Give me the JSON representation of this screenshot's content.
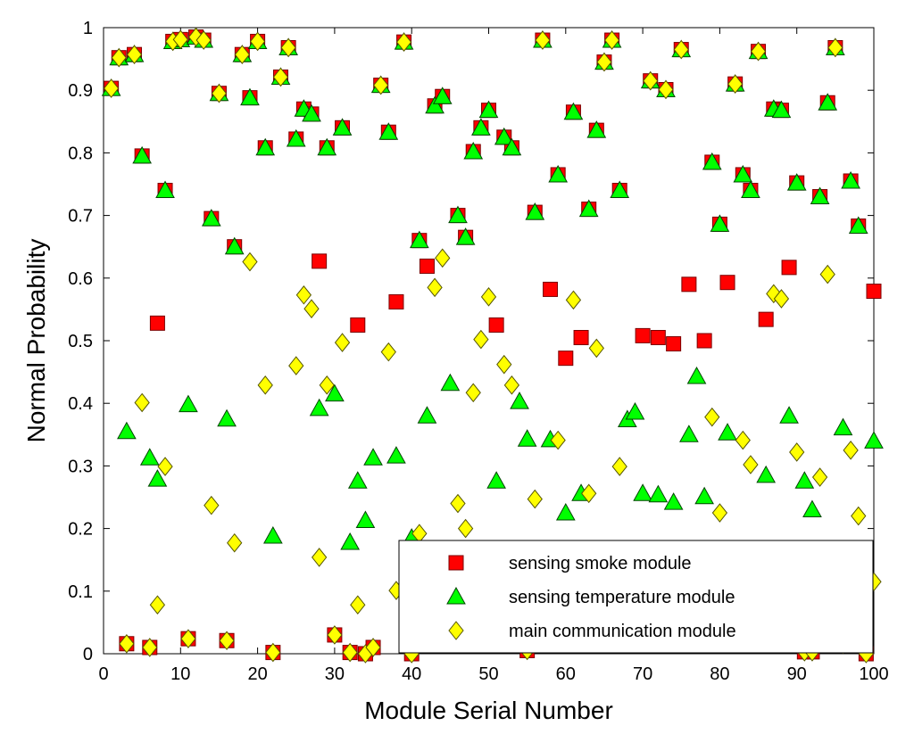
{
  "chart_data": {
    "type": "scatter",
    "title": "",
    "xlabel": "Module Serial Number",
    "ylabel": "Normal Probability",
    "xlim": [
      0,
      100
    ],
    "ylim": [
      0,
      1
    ],
    "xticks": [
      0,
      10,
      20,
      30,
      40,
      50,
      60,
      70,
      80,
      90,
      100
    ],
    "yticks": [
      0,
      0.1,
      0.2,
      0.3,
      0.4,
      0.5,
      0.6,
      0.7,
      0.8,
      0.9,
      1
    ],
    "xtick_labels": [
      "0",
      "10",
      "20",
      "30",
      "40",
      "50",
      "60",
      "70",
      "80",
      "90",
      "100"
    ],
    "ytick_labels": [
      "0",
      "0.1",
      "0.2",
      "0.3",
      "0.4",
      "0.5",
      "0.6",
      "0.7",
      "0.8",
      "0.9",
      "1"
    ],
    "grid": false,
    "legend_position": "bottom-right",
    "series": [
      {
        "name": "sensing smoke module",
        "marker": "square",
        "color": "#ff0000",
        "points": [
          [
            1,
            0.903
          ],
          [
            2,
            0.952
          ],
          [
            3,
            0.016
          ],
          [
            4,
            0.957
          ],
          [
            5,
            0.795
          ],
          [
            6,
            0.01
          ],
          [
            7,
            0.528
          ],
          [
            8,
            0.74
          ],
          [
            9,
            0.978
          ],
          [
            10,
            0.981
          ],
          [
            11,
            0.024
          ],
          [
            12,
            0.985
          ],
          [
            13,
            0.98
          ],
          [
            14,
            0.695
          ],
          [
            15,
            0.895
          ],
          [
            16,
            0.021
          ],
          [
            17,
            0.65
          ],
          [
            18,
            0.957
          ],
          [
            19,
            0.888
          ],
          [
            20,
            0.978
          ],
          [
            21,
            0.808
          ],
          [
            22,
            0.002
          ],
          [
            23,
            0.921
          ],
          [
            24,
            0.968
          ],
          [
            25,
            0.822
          ],
          [
            26,
            0.87
          ],
          [
            27,
            0.862
          ],
          [
            28,
            0.627
          ],
          [
            29,
            0.808
          ],
          [
            30,
            0.03
          ],
          [
            31,
            0.84
          ],
          [
            32,
            0.002
          ],
          [
            33,
            0.525
          ],
          [
            34,
            0.0
          ],
          [
            35,
            0.01
          ],
          [
            36,
            0.908
          ],
          [
            37,
            0.833
          ],
          [
            38,
            0.562
          ],
          [
            39,
            0.977
          ],
          [
            40,
            0.0
          ],
          [
            41,
            0.66
          ],
          [
            42,
            0.619
          ],
          [
            43,
            0.875
          ],
          [
            44,
            0.89
          ],
          [
            46,
            0.7
          ],
          [
            47,
            0.665
          ],
          [
            48,
            0.802
          ],
          [
            49,
            0.84
          ],
          [
            50,
            0.868
          ],
          [
            51,
            0.525
          ],
          [
            52,
            0.825
          ],
          [
            53,
            0.808
          ],
          [
            55,
            0.005
          ],
          [
            56,
            0.705
          ],
          [
            57,
            0.98
          ],
          [
            58,
            0.582
          ],
          [
            59,
            0.765
          ],
          [
            60,
            0.472
          ],
          [
            61,
            0.865
          ],
          [
            62,
            0.505
          ],
          [
            63,
            0.71
          ],
          [
            64,
            0.836
          ],
          [
            65,
            0.945
          ],
          [
            66,
            0.98
          ],
          [
            67,
            0.74
          ],
          [
            70,
            0.508
          ],
          [
            71,
            0.915
          ],
          [
            72,
            0.505
          ],
          [
            73,
            0.901
          ],
          [
            74,
            0.495
          ],
          [
            75,
            0.965
          ],
          [
            76,
            0.59
          ],
          [
            78,
            0.5
          ],
          [
            79,
            0.785
          ],
          [
            80,
            0.686
          ],
          [
            81,
            0.593
          ],
          [
            82,
            0.91
          ],
          [
            83,
            0.765
          ],
          [
            84,
            0.74
          ],
          [
            85,
            0.962
          ],
          [
            86,
            0.534
          ],
          [
            87,
            0.87
          ],
          [
            88,
            0.868
          ],
          [
            89,
            0.617
          ],
          [
            90,
            0.752
          ],
          [
            91,
            0.003
          ],
          [
            92,
            0.003
          ],
          [
            93,
            0.73
          ],
          [
            94,
            0.88
          ],
          [
            95,
            0.968
          ],
          [
            96,
            0.015
          ],
          [
            97,
            0.755
          ],
          [
            98,
            0.683
          ],
          [
            99,
            0.0
          ],
          [
            100,
            0.579
          ]
        ]
      },
      {
        "name": "sensing temperature module",
        "marker": "triangle",
        "color": "#00ff00",
        "points": [
          [
            1,
            0.903
          ],
          [
            2,
            0.952
          ],
          [
            3,
            0.355
          ],
          [
            4,
            0.957
          ],
          [
            5,
            0.795
          ],
          [
            6,
            0.313
          ],
          [
            7,
            0.279
          ],
          [
            8,
            0.74
          ],
          [
            9,
            0.978
          ],
          [
            10,
            0.981
          ],
          [
            11,
            0.398
          ],
          [
            12,
            0.985
          ],
          [
            13,
            0.98
          ],
          [
            14,
            0.695
          ],
          [
            15,
            0.895
          ],
          [
            16,
            0.375
          ],
          [
            17,
            0.65
          ],
          [
            18,
            0.957
          ],
          [
            19,
            0.888
          ],
          [
            20,
            0.978
          ],
          [
            21,
            0.808
          ],
          [
            22,
            0.188
          ],
          [
            23,
            0.921
          ],
          [
            24,
            0.968
          ],
          [
            25,
            0.822
          ],
          [
            26,
            0.87
          ],
          [
            27,
            0.862
          ],
          [
            28,
            0.392
          ],
          [
            29,
            0.808
          ],
          [
            30,
            0.415
          ],
          [
            31,
            0.84
          ],
          [
            32,
            0.178
          ],
          [
            33,
            0.276
          ],
          [
            34,
            0.213
          ],
          [
            35,
            0.313
          ],
          [
            36,
            0.908
          ],
          [
            37,
            0.833
          ],
          [
            38,
            0.316
          ],
          [
            39,
            0.977
          ],
          [
            40,
            0.185
          ],
          [
            41,
            0.66
          ],
          [
            42,
            0.38
          ],
          [
            43,
            0.875
          ],
          [
            44,
            0.89
          ],
          [
            45,
            0.432
          ],
          [
            46,
            0.7
          ],
          [
            47,
            0.665
          ],
          [
            48,
            0.802
          ],
          [
            49,
            0.84
          ],
          [
            50,
            0.868
          ],
          [
            51,
            0.276
          ],
          [
            52,
            0.825
          ],
          [
            53,
            0.808
          ],
          [
            54,
            0.403
          ],
          [
            55,
            0.343
          ],
          [
            56,
            0.705
          ],
          [
            57,
            0.98
          ],
          [
            58,
            0.342
          ],
          [
            59,
            0.765
          ],
          [
            60,
            0.225
          ],
          [
            61,
            0.865
          ],
          [
            62,
            0.256
          ],
          [
            63,
            0.71
          ],
          [
            64,
            0.836
          ],
          [
            65,
            0.945
          ],
          [
            66,
            0.98
          ],
          [
            67,
            0.74
          ],
          [
            68,
            0.374
          ],
          [
            69,
            0.386
          ],
          [
            70,
            0.256
          ],
          [
            71,
            0.915
          ],
          [
            72,
            0.254
          ],
          [
            73,
            0.901
          ],
          [
            74,
            0.242
          ],
          [
            75,
            0.965
          ],
          [
            76,
            0.35
          ],
          [
            77,
            0.443
          ],
          [
            78,
            0.251
          ],
          [
            79,
            0.785
          ],
          [
            80,
            0.686
          ],
          [
            81,
            0.353
          ],
          [
            82,
            0.91
          ],
          [
            83,
            0.765
          ],
          [
            84,
            0.74
          ],
          [
            85,
            0.962
          ],
          [
            86,
            0.285
          ],
          [
            87,
            0.87
          ],
          [
            88,
            0.868
          ],
          [
            89,
            0.38
          ],
          [
            90,
            0.752
          ],
          [
            91,
            0.276
          ],
          [
            92,
            0.23
          ],
          [
            93,
            0.73
          ],
          [
            94,
            0.88
          ],
          [
            95,
            0.968
          ],
          [
            96,
            0.361
          ],
          [
            97,
            0.755
          ],
          [
            98,
            0.683
          ],
          [
            100,
            0.34
          ]
        ]
      },
      {
        "name": "main communication module",
        "marker": "diamond",
        "color": "#ffff00",
        "points": [
          [
            1,
            0.903
          ],
          [
            2,
            0.952
          ],
          [
            3,
            0.016
          ],
          [
            4,
            0.957
          ],
          [
            5,
            0.401
          ],
          [
            6,
            0.01
          ],
          [
            7,
            0.078
          ],
          [
            8,
            0.299
          ],
          [
            9,
            0.978
          ],
          [
            10,
            0.981
          ],
          [
            11,
            0.024
          ],
          [
            12,
            0.985
          ],
          [
            13,
            0.98
          ],
          [
            14,
            0.237
          ],
          [
            15,
            0.895
          ],
          [
            16,
            0.021
          ],
          [
            17,
            0.177
          ],
          [
            18,
            0.957
          ],
          [
            19,
            0.626
          ],
          [
            20,
            0.978
          ],
          [
            21,
            0.429
          ],
          [
            22,
            0.002
          ],
          [
            23,
            0.921
          ],
          [
            24,
            0.968
          ],
          [
            25,
            0.46
          ],
          [
            26,
            0.573
          ],
          [
            27,
            0.551
          ],
          [
            28,
            0.154
          ],
          [
            29,
            0.429
          ],
          [
            30,
            0.03
          ],
          [
            31,
            0.497
          ],
          [
            32,
            0.002
          ],
          [
            33,
            0.078
          ],
          [
            34,
            0.0
          ],
          [
            35,
            0.01
          ],
          [
            36,
            0.908
          ],
          [
            37,
            0.482
          ],
          [
            38,
            0.101
          ],
          [
            39,
            0.977
          ],
          [
            40,
            0.0
          ],
          [
            41,
            0.192
          ],
          [
            43,
            0.585
          ],
          [
            44,
            0.632
          ],
          [
            46,
            0.24
          ],
          [
            47,
            0.2
          ],
          [
            48,
            0.417
          ],
          [
            49,
            0.502
          ],
          [
            50,
            0.57
          ],
          [
            52,
            0.462
          ],
          [
            53,
            0.429
          ],
          [
            55,
            0.005
          ],
          [
            56,
            0.247
          ],
          [
            57,
            0.98
          ],
          [
            59,
            0.341
          ],
          [
            61,
            0.565
          ],
          [
            63,
            0.256
          ],
          [
            64,
            0.488
          ],
          [
            65,
            0.945
          ],
          [
            66,
            0.98
          ],
          [
            67,
            0.299
          ],
          [
            71,
            0.915
          ],
          [
            73,
            0.901
          ],
          [
            75,
            0.965
          ],
          [
            79,
            0.378
          ],
          [
            80,
            0.225
          ],
          [
            82,
            0.91
          ],
          [
            83,
            0.341
          ],
          [
            84,
            0.302
          ],
          [
            85,
            0.962
          ],
          [
            87,
            0.575
          ],
          [
            88,
            0.567
          ],
          [
            90,
            0.322
          ],
          [
            91,
            0.003
          ],
          [
            92,
            0.003
          ],
          [
            93,
            0.282
          ],
          [
            94,
            0.606
          ],
          [
            95,
            0.968
          ],
          [
            96,
            0.015
          ],
          [
            97,
            0.325
          ],
          [
            98,
            0.22
          ],
          [
            99,
            0.0
          ],
          [
            100,
            0.115
          ]
        ]
      }
    ]
  }
}
